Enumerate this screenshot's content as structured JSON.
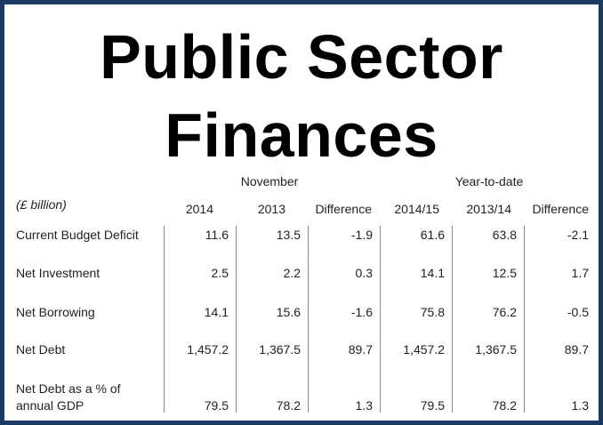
{
  "title": {
    "line1": "Public Sector",
    "line2": "Finances"
  },
  "table": {
    "unit": "(£ billion)",
    "groups": {
      "monthly": "November",
      "ytd": "Year-to-date"
    },
    "columns": [
      "2014",
      "2013",
      "Difference",
      "2014/15",
      "2013/14",
      "Difference"
    ],
    "rows": [
      {
        "label": "Current Budget Deficit",
        "values": [
          "11.6",
          "13.5",
          "-1.9",
          "61.6",
          "63.8",
          "-2.1"
        ]
      },
      {
        "label": "Net Investment",
        "values": [
          "2.5",
          "2.2",
          "0.3",
          "14.1",
          "12.5",
          "1.7"
        ]
      },
      {
        "label": "Net Borrowing",
        "values": [
          "14.1",
          "15.6",
          "-1.6",
          "75.8",
          "76.2",
          "-0.5"
        ]
      },
      {
        "label": "Net Debt",
        "values": [
          "1,457.2",
          "1,367.5",
          "89.7",
          "1,457.2",
          "1,367.5",
          "89.7"
        ]
      },
      {
        "label_line1": "Net Debt as a % of",
        "label_line2": "annual GDP",
        "values": [
          "79.5",
          "78.2",
          "1.3",
          "79.5",
          "78.2",
          "1.3"
        ]
      }
    ]
  },
  "colors": {
    "border": "#1a3a63",
    "title": "#000000",
    "text": "#222222"
  }
}
